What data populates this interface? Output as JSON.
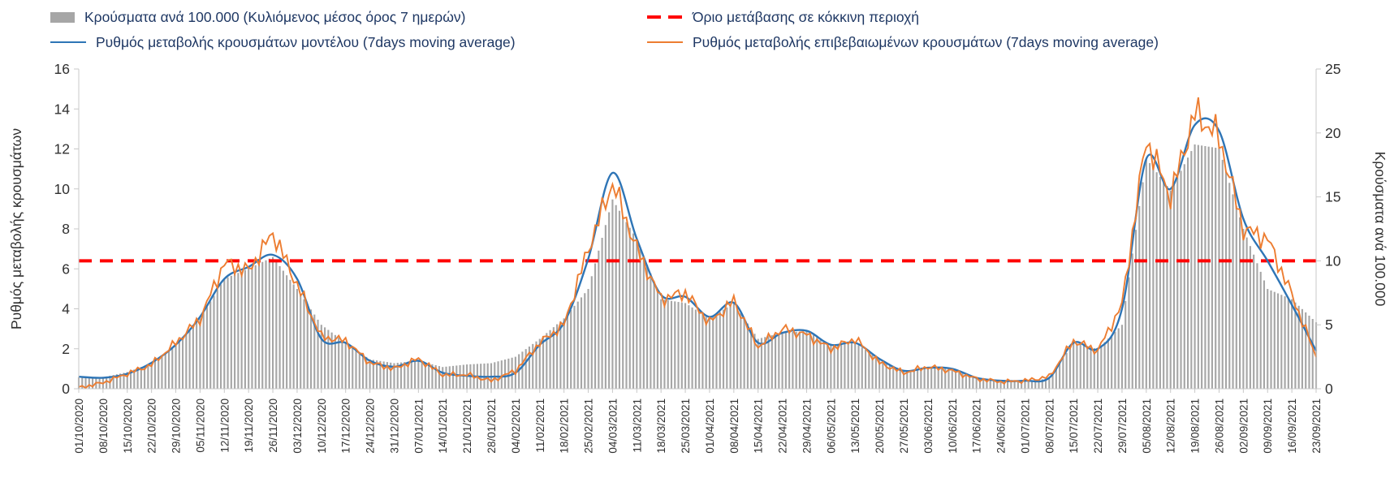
{
  "legend": {
    "bars_label": "Κρούσματα ανά 100.000 (Κυλιόμενος μέσος όρος 7 ημερών)",
    "threshold_label": "Όριο μετάβασης σε κόκκινη περιοχή",
    "model_label": "Ρυθμός μεταβολής κρουσμάτων μοντέλου (7days moving average)",
    "confirmed_label": "Ρυθμός μεταβολής επιβεβαιωμένων κρουσμάτων (7days moving average)"
  },
  "axes": {
    "left_title": "Ρυθμός μεταβολής κρουσμάτων",
    "right_title": "Κρούσματα ανά 100.000",
    "left_ticks": [
      0,
      2,
      4,
      6,
      8,
      10,
      12,
      14,
      16
    ],
    "right_ticks": [
      0,
      5,
      10,
      15,
      20,
      25
    ]
  },
  "colors": {
    "bars": "#a6a6a6",
    "model_line": "#2e75b6",
    "confirmed_line": "#ed7d31",
    "threshold": "#ff0000",
    "legend_text": "#1f3864",
    "axis_line": "#c8c8c8",
    "tick_text": "#303030"
  },
  "chart_data": {
    "type": "combo",
    "title": "",
    "xlabel": "",
    "left_ylabel": "Ρυθμός μεταβολής κρουσμάτων",
    "right_ylabel": "Κρούσματα ανά 100.000",
    "left_ylim": [
      0,
      16
    ],
    "right_ylim": [
      0,
      25
    ],
    "grid": false,
    "legend_position": "top",
    "note": "Weekly sample values read from a daily chart of 7-day moving averages; bars use the right axis, lines the left axis.",
    "categories": [
      "01/10/2020",
      "08/10/2020",
      "15/10/2020",
      "22/10/2020",
      "29/10/2020",
      "05/11/2020",
      "12/11/2020",
      "19/11/2020",
      "26/11/2020",
      "03/12/2020",
      "10/12/2020",
      "17/12/2020",
      "24/12/2020",
      "31/12/2020",
      "07/01/2021",
      "14/01/2021",
      "21/01/2021",
      "28/01/2021",
      "04/02/2021",
      "11/02/2021",
      "18/02/2021",
      "25/02/2021",
      "04/03/2021",
      "11/03/2021",
      "18/03/2021",
      "25/03/2021",
      "01/04/2021",
      "08/04/2021",
      "15/04/2021",
      "22/04/2021",
      "29/04/2021",
      "06/05/2021",
      "13/05/2021",
      "20/05/2021",
      "27/05/2021",
      "03/06/2021",
      "10/06/2021",
      "17/06/2021",
      "24/06/2021",
      "01/07/2021",
      "08/07/2021",
      "15/07/2021",
      "22/07/2021",
      "29/07/2021",
      "05/08/2021",
      "12/08/2021",
      "19/08/2021",
      "26/08/2021",
      "02/09/2021",
      "09/09/2021",
      "16/09/2021",
      "23/09/2021"
    ],
    "series": [
      {
        "id": "cases_per_100k",
        "name": "Κρούσματα ανά 100.000 (Κυλιόμενος μέσος όρος 7 ημερών)",
        "type": "bar",
        "axis": "right",
        "color": "#a6a6a6",
        "values": [
          0.9,
          0.9,
          1.3,
          2.0,
          3.4,
          5.5,
          8.6,
          9.4,
          10.3,
          7.8,
          5.0,
          3.6,
          2.3,
          2.0,
          2.2,
          1.7,
          1.9,
          2.0,
          2.5,
          3.9,
          5.5,
          7.8,
          14.8,
          11.7,
          7.0,
          6.7,
          5.5,
          6.7,
          3.9,
          4.4,
          4.5,
          3.4,
          3.6,
          2.3,
          1.4,
          1.6,
          1.6,
          0.9,
          0.6,
          0.6,
          0.8,
          3.6,
          3.1,
          5.0,
          18.0,
          15.5,
          19.1,
          18.8,
          12.5,
          7.8,
          7.0,
          5.2
        ]
      },
      {
        "id": "model_rate",
        "name": "Ρυθμός μεταβολής κρουσμάτων μοντέλου (7days moving average)",
        "type": "line",
        "axis": "left",
        "color": "#2e75b6",
        "values": [
          0.6,
          0.55,
          0.75,
          1.3,
          2.2,
          3.6,
          5.5,
          6.1,
          6.7,
          5.5,
          2.5,
          2.3,
          1.4,
          1.1,
          1.4,
          0.8,
          0.65,
          0.6,
          0.8,
          2.2,
          3.3,
          6.5,
          10.8,
          7.5,
          4.7,
          4.6,
          3.6,
          4.3,
          2.3,
          2.8,
          2.9,
          2.2,
          2.3,
          1.5,
          0.9,
          1.05,
          1.0,
          0.55,
          0.4,
          0.4,
          0.55,
          2.3,
          2.0,
          4.0,
          11.5,
          10.0,
          13.2,
          12.9,
          8.5,
          6.4,
          4.2,
          1.9
        ]
      },
      {
        "id": "confirmed_rate",
        "name": "Ρυθμός μεταβολής επιβεβαιωμένων κρουσμάτων (7days moving average)",
        "type": "line",
        "axis": "left",
        "color": "#ed7d31",
        "values": [
          0.05,
          0.3,
          0.75,
          1.2,
          2.3,
          3.5,
          6.3,
          5.9,
          7.8,
          5.2,
          2.6,
          2.4,
          1.3,
          1.0,
          1.5,
          0.7,
          0.7,
          0.4,
          0.9,
          2.3,
          3.2,
          7.0,
          10.3,
          7.0,
          4.5,
          4.8,
          3.3,
          4.4,
          2.1,
          3.0,
          2.7,
          2.0,
          2.5,
          1.3,
          0.8,
          1.1,
          0.9,
          0.5,
          0.35,
          0.4,
          0.6,
          2.4,
          1.9,
          4.2,
          12.5,
          9.6,
          13.8,
          12.6,
          8.0,
          7.5,
          4.7,
          1.6
        ]
      },
      {
        "id": "red_threshold",
        "name": "Όριο μετάβασης σε κόκκινη περιοχή",
        "type": "line",
        "style": "dashed",
        "axis": "left",
        "color": "#ff0000",
        "value_left_axis": 6.4,
        "equivalent_right_axis": 10
      }
    ]
  }
}
